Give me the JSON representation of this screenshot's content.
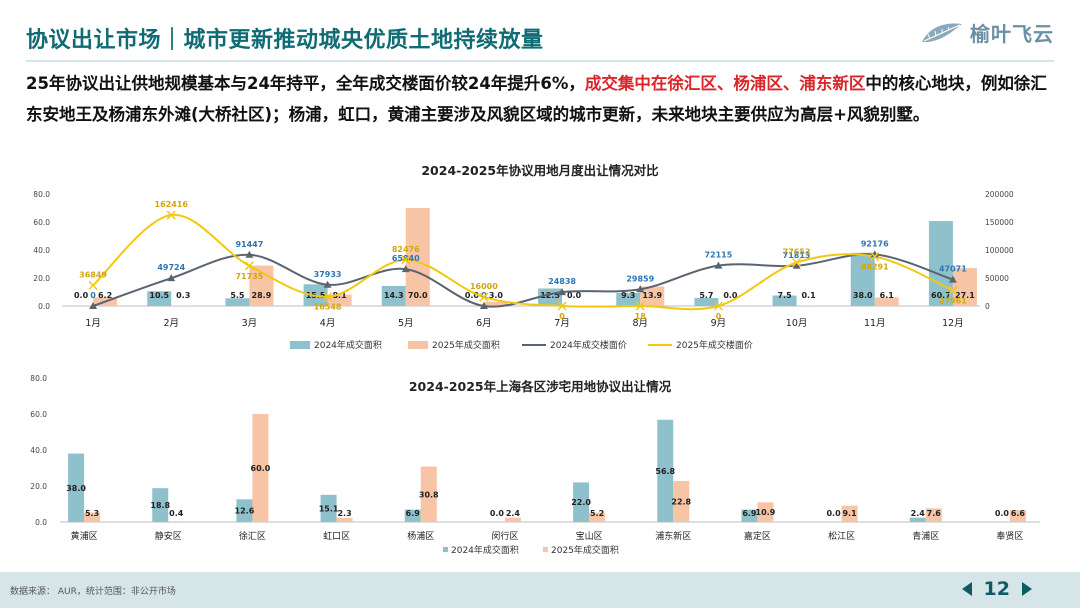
{
  "header": {
    "title": "协议出让市场｜城市更新推动城央优质土地持续放量",
    "logo_text": "榆叶飞云"
  },
  "description": {
    "part1": "25年协议出让供地规模基本与24年持平，全年成交楼面价较24年提升6%，",
    "highlight": "成交集中在徐汇区、杨浦区、浦东新区",
    "part2": "中的核心地块，例如徐汇东安地王及杨浦东外滩(大桥社区)；杨浦，虹口，黄浦主要涉及风貌区域的城市更新，未来地块主要供应为高层+风貌别墅。"
  },
  "chart_data": [
    {
      "type": "bar+line",
      "title": "2024-2025年协议用地月度出让情况对比",
      "categories": [
        "1月",
        "2月",
        "3月",
        "4月",
        "5月",
        "6月",
        "7月",
        "8月",
        "9月",
        "10月",
        "11月",
        "12月"
      ],
      "series": [
        {
          "name": "2024年成交面积",
          "type": "bar",
          "axis": "left",
          "color": "#8fc1cc",
          "values": [
            0.0,
            10.5,
            5.5,
            15.5,
            14.3,
            0.0,
            12.5,
            9.3,
            5.7,
            7.5,
            38.0,
            60.7
          ]
        },
        {
          "name": "2025年成交面积",
          "type": "bar",
          "axis": "left",
          "color": "#f7c4a5",
          "values": [
            6.2,
            0.3,
            28.9,
            8.1,
            70.0,
            3.0,
            0.0,
            13.9,
            0,
            0.1,
            6.1,
            27.1
          ]
        },
        {
          "name": "2024年成交楼面价",
          "type": "line",
          "axis": "right",
          "color": "#5a6370",
          "values": [
            0,
            49724,
            91447,
            37933,
            65840,
            0,
            24838,
            29859,
            72115,
            71813,
            92176,
            47071
          ]
        },
        {
          "name": "2025年成交楼面价",
          "type": "line",
          "axis": "right",
          "color": "#f2c811",
          "values": [
            36849,
            162416,
            71735,
            16548,
            82476,
            16000,
            0,
            18,
            0,
            77653,
            88291,
            27961
          ]
        }
      ],
      "left_ticks": [
        "0.0",
        "20.0",
        "40.0",
        "60.0",
        "80.0"
      ],
      "right_ticks": [
        "0",
        "50000",
        "100000",
        "150000",
        "200000"
      ],
      "ylim_left": [
        0,
        80
      ],
      "ylim_right": [
        0,
        200000
      ]
    },
    {
      "type": "bar",
      "title": "2024-2025年上海各区涉宅用地协议出让情况",
      "categories": [
        "黄浦区",
        "静安区",
        "徐汇区",
        "虹口区",
        "杨浦区",
        "闵行区",
        "宝山区",
        "浦东新区",
        "嘉定区",
        "松江区",
        "青浦区",
        "奉贤区"
      ],
      "series": [
        {
          "name": "2024年成交面积",
          "color": "#8fc1cc",
          "values": [
            38.0,
            18.8,
            12.6,
            15.1,
            6.9,
            0.0,
            22.0,
            56.8,
            6.9,
            0.0,
            2.4,
            0
          ]
        },
        {
          "name": "2025年成交面积",
          "color": "#f7c4a5",
          "values": [
            5.3,
            0.4,
            60.0,
            2.3,
            30.8,
            2.4,
            5.2,
            22.8,
            10.9,
            9.1,
            7.6,
            6.6
          ]
        }
      ],
      "left_ticks": [
        "0.0",
        "20.0",
        "40.0",
        "60.0",
        "80.0"
      ],
      "ylim": [
        0,
        80
      ]
    }
  ],
  "footer": {
    "note": "数据来源： AUR，统计范围：非公开市场",
    "page_number": "12"
  }
}
